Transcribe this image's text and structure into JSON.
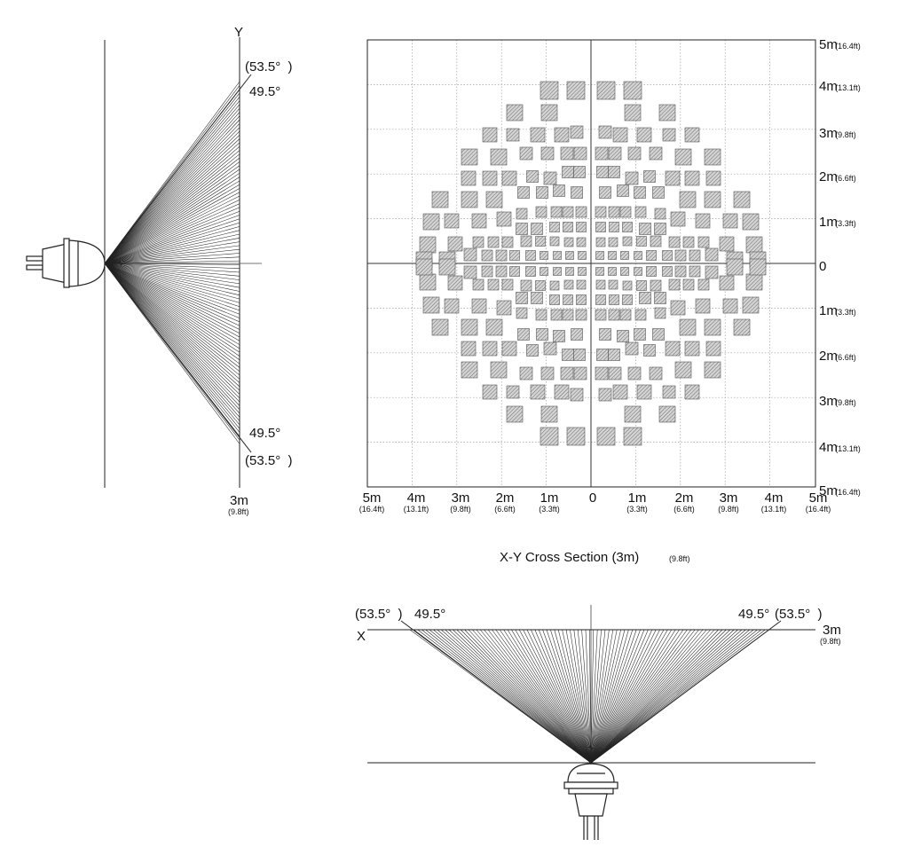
{
  "side_view": {
    "axis_label": "Y",
    "angle_outer_top": "(53.5°  )",
    "angle_inner_top": "49.5°",
    "angle_inner_bottom": "49.5°",
    "angle_outer_bottom": "(53.5°  )",
    "distance": "3m",
    "distance_ft": "(9.8ft)"
  },
  "cross_section": {
    "caption": "X-Y Cross Section (3m)",
    "caption_ft": "(9.8ft)",
    "right_ticks": [
      {
        "m": "5m",
        "ft": "(16.4ft)"
      },
      {
        "m": "4m",
        "ft": "(13.1ft)"
      },
      {
        "m": "3m",
        "ft": "(9.8ft)"
      },
      {
        "m": "2m",
        "ft": "(6.6ft)"
      },
      {
        "m": "1m",
        "ft": "(3.3ft)"
      },
      {
        "m": "0",
        "ft": ""
      },
      {
        "m": "1m",
        "ft": "(3.3ft)"
      },
      {
        "m": "2m",
        "ft": "(6.6ft)"
      },
      {
        "m": "3m",
        "ft": "(9.8ft)"
      },
      {
        "m": "4m",
        "ft": "(13.1ft)"
      },
      {
        "m": "5m",
        "ft": "(16.4ft)"
      }
    ],
    "bottom_ticks": [
      {
        "m": "5m",
        "ft": "(16.4ft)"
      },
      {
        "m": "4m",
        "ft": "(13.1ft)"
      },
      {
        "m": "3m",
        "ft": "(9.8ft)"
      },
      {
        "m": "2m",
        "ft": "(6.6ft)"
      },
      {
        "m": "1m",
        "ft": "(3.3ft)"
      },
      {
        "m": "0",
        "ft": ""
      },
      {
        "m": "1m",
        "ft": "(3.3ft)"
      },
      {
        "m": "2m",
        "ft": "(6.6ft)"
      },
      {
        "m": "3m",
        "ft": "(9.8ft)"
      },
      {
        "m": "4m",
        "ft": "(13.1ft)"
      },
      {
        "m": "5m",
        "ft": "(16.4ft)"
      }
    ]
  },
  "front_view": {
    "axis_label": "X",
    "angle_outer_left": "(53.5°  )",
    "angle_inner_left": "49.5°",
    "angle_inner_right": "49.5°",
    "angle_outer_right": "(53.5°  )",
    "distance": "3m",
    "distance_ft": "(9.8ft)"
  },
  "colors": {
    "line": "#222222",
    "grid": "#9a9a9a",
    "zone_fill": "#d2d2d2",
    "hatch": "#666666"
  }
}
